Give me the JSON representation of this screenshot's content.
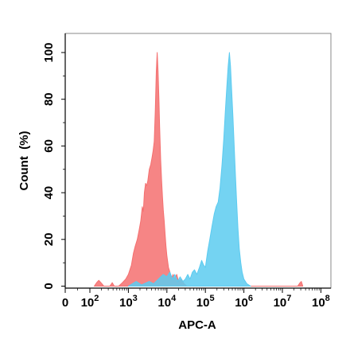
{
  "chart_data": {
    "type": "area",
    "xlabel": "APC-A",
    "ylabel": "Count  (%)",
    "x_scale": "biexponential",
    "xlim": [
      0,
      100000000
    ],
    "ylim": [
      0,
      108
    ],
    "x_ticks": [
      {
        "value": 0,
        "base": "0",
        "exp": ""
      },
      {
        "value": 100,
        "base": "10",
        "exp": "2"
      },
      {
        "value": 1000,
        "base": "10",
        "exp": "3"
      },
      {
        "value": 10000,
        "base": "10",
        "exp": "4"
      },
      {
        "value": 100000,
        "base": "10",
        "exp": "5"
      },
      {
        "value": 1000000,
        "base": "10",
        "exp": "6"
      },
      {
        "value": 10000000,
        "base": "10",
        "exp": "7"
      },
      {
        "value": 100000000,
        "base": "10",
        "exp": "8"
      }
    ],
    "y_ticks": [
      "0",
      "20",
      "40",
      "60",
      "80",
      "100"
    ],
    "grid": false,
    "series": [
      {
        "color": "#f47070",
        "points": [
          [
            130,
            0
          ],
          [
            150,
            1.5
          ],
          [
            170,
            2.5
          ],
          [
            200,
            1.2
          ],
          [
            230,
            0
          ],
          [
            330,
            0
          ],
          [
            380,
            1.5
          ],
          [
            430,
            0
          ],
          [
            560,
            0
          ],
          [
            700,
            1.5
          ],
          [
            850,
            3
          ],
          [
            1000,
            5
          ],
          [
            1200,
            9
          ],
          [
            1350,
            14
          ],
          [
            1500,
            17
          ],
          [
            1700,
            20
          ],
          [
            1900,
            24
          ],
          [
            2100,
            28
          ],
          [
            2300,
            34
          ],
          [
            2450,
            32
          ],
          [
            2600,
            40
          ],
          [
            2800,
            44
          ],
          [
            3000,
            43
          ],
          [
            3200,
            45
          ],
          [
            3500,
            50
          ],
          [
            3800,
            52
          ],
          [
            4100,
            55
          ],
          [
            4400,
            58
          ],
          [
            4700,
            62
          ],
          [
            5000,
            75
          ],
          [
            5300,
            92
          ],
          [
            5600,
            100
          ],
          [
            5900,
            92
          ],
          [
            6200,
            80
          ],
          [
            6500,
            68
          ],
          [
            6900,
            54
          ],
          [
            7300,
            45
          ],
          [
            7700,
            38
          ],
          [
            8100,
            32
          ],
          [
            8500,
            28
          ],
          [
            9000,
            22
          ],
          [
            9500,
            17
          ],
          [
            10000,
            13
          ],
          [
            11000,
            8
          ],
          [
            12000,
            6
          ],
          [
            13000,
            3
          ],
          [
            14500,
            5
          ],
          [
            16000,
            3
          ],
          [
            18000,
            5
          ],
          [
            20000,
            2
          ],
          [
            24000,
            3
          ],
          [
            28000,
            1
          ],
          [
            33000,
            0
          ],
          [
            25000000,
            0
          ],
          [
            28000000,
            1.2
          ],
          [
            31000000,
            2
          ],
          [
            34000000,
            0
          ]
        ]
      },
      {
        "color": "#5ccbf0",
        "points": [
          [
            1000,
            0
          ],
          [
            1600,
            2
          ],
          [
            2200,
            0.5
          ],
          [
            3500,
            2
          ],
          [
            4500,
            1
          ],
          [
            6000,
            3
          ],
          [
            8000,
            5
          ],
          [
            10000,
            4
          ],
          [
            12000,
            6
          ],
          [
            14000,
            3
          ],
          [
            16000,
            5
          ],
          [
            19000,
            2
          ],
          [
            22000,
            4
          ],
          [
            26000,
            2
          ],
          [
            30000,
            3
          ],
          [
            35000,
            5
          ],
          [
            40000,
            3
          ],
          [
            46000,
            6
          ],
          [
            52000,
            7
          ],
          [
            60000,
            5
          ],
          [
            70000,
            8
          ],
          [
            80000,
            11
          ],
          [
            90000,
            9
          ],
          [
            100000,
            8
          ],
          [
            115000,
            15
          ],
          [
            130000,
            20
          ],
          [
            150000,
            26
          ],
          [
            170000,
            31
          ],
          [
            190000,
            34
          ],
          [
            215000,
            36
          ],
          [
            240000,
            42
          ],
          [
            270000,
            52
          ],
          [
            300000,
            63
          ],
          [
            330000,
            75
          ],
          [
            360000,
            85
          ],
          [
            390000,
            94
          ],
          [
            420000,
            100
          ],
          [
            450000,
            94
          ],
          [
            480000,
            84
          ],
          [
            520000,
            72
          ],
          [
            560000,
            60
          ],
          [
            600000,
            48
          ],
          [
            650000,
            36
          ],
          [
            700000,
            25
          ],
          [
            760000,
            16
          ],
          [
            830000,
            10
          ],
          [
            900000,
            6
          ],
          [
            1000000,
            3
          ],
          [
            1200000,
            1
          ],
          [
            1500000,
            0
          ]
        ]
      }
    ]
  }
}
